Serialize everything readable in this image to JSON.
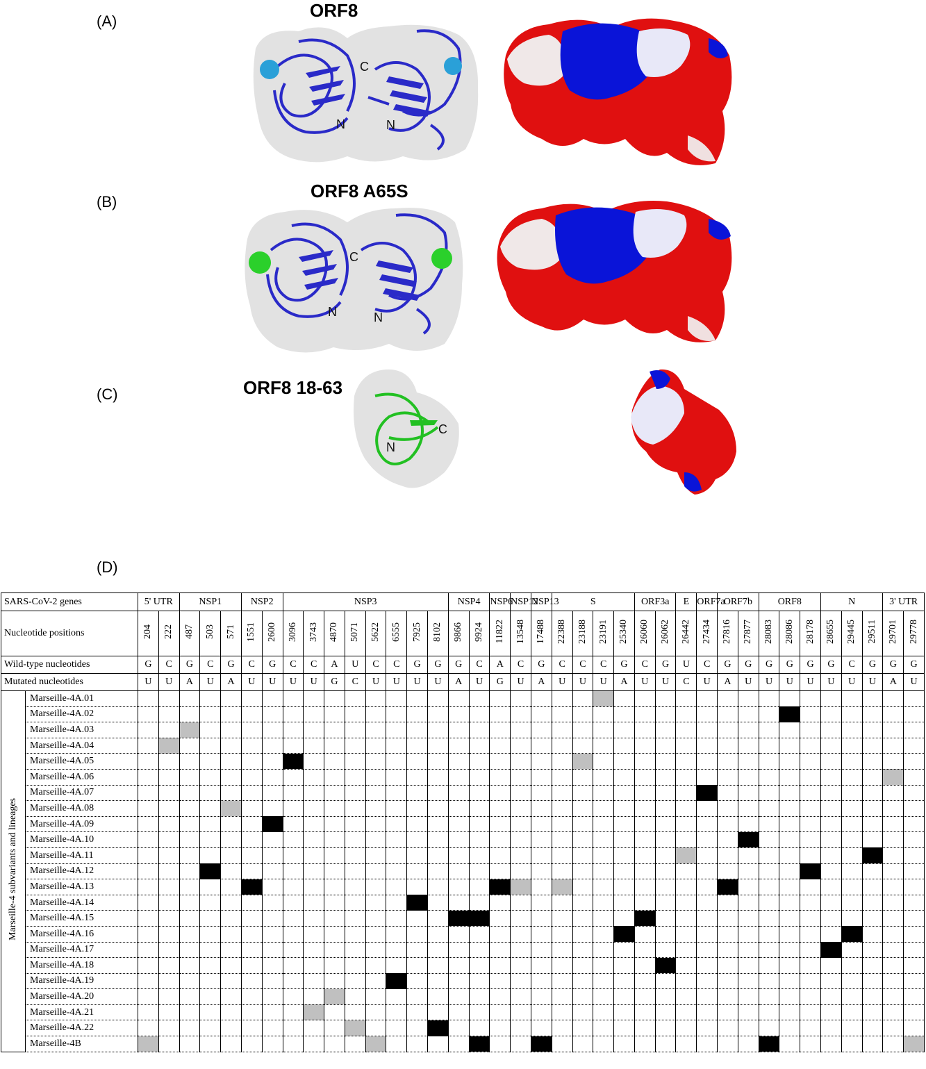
{
  "panels": {
    "a": {
      "letter": "(A)",
      "title": "ORF8",
      "n1": "N",
      "n2": "N",
      "c": "C"
    },
    "b": {
      "letter": "(B)",
      "title": "ORF8 A65S",
      "n1": "N",
      "n2": "N",
      "c": "C"
    },
    "c": {
      "letter": "(C)",
      "title": "ORF8 18-63",
      "n": "N",
      "c": "C"
    },
    "d": {
      "letter": "(D)"
    }
  },
  "colors": {
    "cartoon_blue": "#2a2ac8",
    "mutation_sphere_a": "#2aa0d8",
    "mutation_sphere_b": "#2bd02b",
    "cartoon_green": "#22c022",
    "surface_positive": "#0a14d8",
    "surface_negative": "#e01010",
    "surface_neutral": "#f2f2f2",
    "marked_black": "#000000",
    "marked_gray": "#c0c0c0"
  },
  "table": {
    "row_labels": {
      "genes": "SARS-CoV-2 genes",
      "positions": "Nucleotide positions",
      "wild": "Wild-type nucleotides",
      "mutated": "Mutated nucleotides"
    },
    "side_label": "Marseille-4 subvariants and lineages",
    "genes": [
      {
        "name": "5' UTR",
        "cols": [
          {
            "pos": "204",
            "wt": "G",
            "mt": "U"
          },
          {
            "pos": "222",
            "wt": "C",
            "mt": "U"
          }
        ]
      },
      {
        "name": "NSP1",
        "cols": [
          {
            "pos": "487",
            "wt": "G",
            "mt": "A"
          },
          {
            "pos": "503",
            "wt": "C",
            "mt": "U"
          },
          {
            "pos": "571",
            "wt": "G",
            "mt": "A"
          }
        ]
      },
      {
        "name": "NSP2",
        "cols": [
          {
            "pos": "1551",
            "wt": "C",
            "mt": "U"
          },
          {
            "pos": "2600",
            "wt": "G",
            "mt": "U"
          }
        ]
      },
      {
        "name": "NSP3",
        "cols": [
          {
            "pos": "3096",
            "wt": "C",
            "mt": "U"
          },
          {
            "pos": "3743",
            "wt": "C",
            "mt": "U"
          },
          {
            "pos": "4870",
            "wt": "A",
            "mt": "G"
          },
          {
            "pos": "5071",
            "wt": "U",
            "mt": "C"
          },
          {
            "pos": "5622",
            "wt": "C",
            "mt": "U"
          },
          {
            "pos": "6555",
            "wt": "C",
            "mt": "U"
          },
          {
            "pos": "7925",
            "wt": "G",
            "mt": "U"
          },
          {
            "pos": "8102",
            "wt": "G",
            "mt": "U"
          }
        ]
      },
      {
        "name": "NSP4",
        "cols": [
          {
            "pos": "9866",
            "wt": "G",
            "mt": "A"
          },
          {
            "pos": "9924",
            "wt": "C",
            "mt": "U"
          }
        ]
      },
      {
        "name": "NSP6",
        "cols": [
          {
            "pos": "11822",
            "wt": "A",
            "mt": "G"
          }
        ]
      },
      {
        "name": "NSP12",
        "cols": [
          {
            "pos": "13548",
            "wt": "C",
            "mt": "U"
          }
        ]
      },
      {
        "name": "NSP13",
        "cols": [
          {
            "pos": "17488",
            "wt": "G",
            "mt": "A"
          }
        ]
      },
      {
        "name": "S",
        "cols": [
          {
            "pos": "22388",
            "wt": "C",
            "mt": "U"
          },
          {
            "pos": "23188",
            "wt": "C",
            "mt": "U"
          },
          {
            "pos": "23191",
            "wt": "C",
            "mt": "U"
          },
          {
            "pos": "25340",
            "wt": "G",
            "mt": "A"
          }
        ]
      },
      {
        "name": "ORF3a",
        "cols": [
          {
            "pos": "26060",
            "wt": "C",
            "mt": "U"
          },
          {
            "pos": "26062",
            "wt": "G",
            "mt": "U"
          }
        ]
      },
      {
        "name": "E",
        "cols": [
          {
            "pos": "26442",
            "wt": "U",
            "mt": "C"
          }
        ]
      },
      {
        "name": "ORF7a",
        "cols": [
          {
            "pos": "27434",
            "wt": "C",
            "mt": "U"
          }
        ]
      },
      {
        "name": "ORF7b",
        "cols": [
          {
            "pos": "27816",
            "wt": "G",
            "mt": "A"
          },
          {
            "pos": "27877",
            "wt": "G",
            "mt": "U"
          }
        ]
      },
      {
        "name": "ORF8",
        "cols": [
          {
            "pos": "28083",
            "wt": "G",
            "mt": "U"
          },
          {
            "pos": "28086",
            "wt": "G",
            "mt": "U"
          },
          {
            "pos": "28178",
            "wt": "G",
            "mt": "U"
          }
        ]
      },
      {
        "name": "N",
        "cols": [
          {
            "pos": "28655",
            "wt": "G",
            "mt": "U"
          },
          {
            "pos": "29445",
            "wt": "C",
            "mt": "U"
          },
          {
            "pos": "29511",
            "wt": "G",
            "mt": "U"
          }
        ]
      },
      {
        "name": "3' UTR",
        "cols": [
          {
            "pos": "29701",
            "wt": "G",
            "mt": "A"
          },
          {
            "pos": "29778",
            "wt": "G",
            "mt": "U"
          }
        ]
      }
    ],
    "rows": [
      {
        "label": "Marseille-4A.01",
        "black": [],
        "gray": [
          "23191"
        ]
      },
      {
        "label": "Marseille-4A.02",
        "black": [
          "28086"
        ],
        "gray": []
      },
      {
        "label": "Marseille-4A.03",
        "black": [],
        "gray": [
          "487"
        ]
      },
      {
        "label": "Marseille-4A.04",
        "black": [],
        "gray": [
          "222"
        ]
      },
      {
        "label": "Marseille-4A.05",
        "black": [
          "3096"
        ],
        "gray": [
          "23188"
        ]
      },
      {
        "label": "Marseille-4A.06",
        "black": [],
        "gray": [
          "29701"
        ]
      },
      {
        "label": "Marseille-4A.07",
        "black": [
          "27434"
        ],
        "gray": []
      },
      {
        "label": "Marseille-4A.08",
        "black": [],
        "gray": [
          "571"
        ]
      },
      {
        "label": "Marseille-4A.09",
        "black": [
          "2600"
        ],
        "gray": []
      },
      {
        "label": "Marseille-4A.10",
        "black": [
          "27877"
        ],
        "gray": []
      },
      {
        "label": "Marseille-4A.11",
        "black": [
          "29511"
        ],
        "gray": [
          "26442"
        ]
      },
      {
        "label": "Marseille-4A.12",
        "black": [
          "503",
          "28178"
        ],
        "gray": []
      },
      {
        "label": "Marseille-4A.13",
        "black": [
          "1551",
          "11822",
          "27816"
        ],
        "gray": [
          "13548",
          "22388"
        ]
      },
      {
        "label": "Marseille-4A.14",
        "black": [
          "7925"
        ],
        "gray": []
      },
      {
        "label": "Marseille-4A.15",
        "black": [
          "9866",
          "9924",
          "26060"
        ],
        "gray": []
      },
      {
        "label": "Marseille-4A.16",
        "black": [
          "25340",
          "29445"
        ],
        "gray": []
      },
      {
        "label": "Marseille-4A.17",
        "black": [
          "28655"
        ],
        "gray": []
      },
      {
        "label": "Marseille-4A.18",
        "black": [
          "26062"
        ],
        "gray": []
      },
      {
        "label": "Marseille-4A.19",
        "black": [
          "6555"
        ],
        "gray": []
      },
      {
        "label": "Marseille-4A.20",
        "black": [],
        "gray": [
          "4870"
        ]
      },
      {
        "label": "Marseille-4A.21",
        "black": [],
        "gray": [
          "3743"
        ]
      },
      {
        "label": "Marseille-4A.22",
        "black": [
          "8102"
        ],
        "gray": [
          "5071"
        ]
      },
      {
        "label": "Marseille-4B",
        "black": [
          "9924",
          "17488",
          "28083"
        ],
        "gray": [
          "204",
          "5622",
          "29778"
        ]
      }
    ]
  }
}
